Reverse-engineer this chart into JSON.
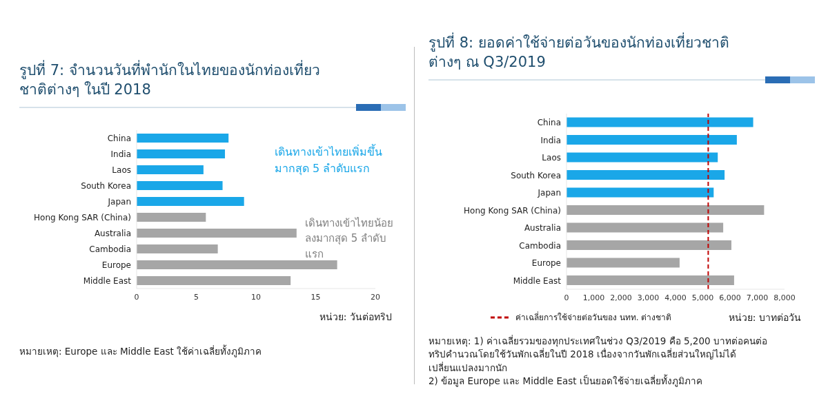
{
  "chart_data": [
    {
      "type": "bar",
      "orientation": "horizontal",
      "title": "รูปที่ 7: จำนวนวันที่พำนักในไทยของนักท่องเที่ยวชาติต่างๆ ในปี 2018",
      "xlabel": "หน่วย: วันต่อทริป",
      "categories": [
        "China",
        "India",
        "Laos",
        "South Korea",
        "Japan",
        "Hong Kong SAR (China)",
        "Australia",
        "Cambodia",
        "Europe",
        "Middle East"
      ],
      "values": [
        7.7,
        7.4,
        5.6,
        7.2,
        9.0,
        5.8,
        13.4,
        6.8,
        16.8,
        12.9
      ],
      "colors": [
        "#1aa7e8",
        "#1aa7e8",
        "#1aa7e8",
        "#1aa7e8",
        "#1aa7e8",
        "#a6a6a6",
        "#a6a6a6",
        "#a6a6a6",
        "#a6a6a6",
        "#a6a6a6"
      ],
      "xlim": [
        0,
        20
      ],
      "xticks": [
        0,
        5,
        10,
        15,
        20
      ],
      "grid": false,
      "annotations": [
        "เดินทางเข้าไทยเพิ่มขึ้นมากสุด 5 ลำดับแรก",
        "เดินทางเข้าไทยน้อยลงมากสุด 5 ลำดับแรก",
        "หมายเหตุ:  Europe และ Middle East ใช้ค่าเฉลี่ยทั้งภูมิภาค"
      ]
    },
    {
      "type": "bar",
      "orientation": "horizontal",
      "title": "รูปที่ 8: ยอดค่าใช้จ่ายต่อวันของนักท่องเที่ยวชาติต่างๆ ณ Q3/2019",
      "xlabel": "หน่วย: บาทต่อวัน",
      "categories": [
        "China",
        "India",
        "Laos",
        "South Korea",
        "Japan",
        "Hong Kong SAR (China)",
        "Australia",
        "Cambodia",
        "Europe",
        "Middle East"
      ],
      "values": [
        6850,
        6250,
        5550,
        5800,
        5400,
        7250,
        5750,
        6050,
        4150,
        6150
      ],
      "colors": [
        "#1aa7e8",
        "#1aa7e8",
        "#1aa7e8",
        "#1aa7e8",
        "#1aa7e8",
        "#a6a6a6",
        "#a6a6a6",
        "#a6a6a6",
        "#a6a6a6",
        "#a6a6a6"
      ],
      "xlim": [
        0,
        8000
      ],
      "xticks": [
        0,
        {
          "value": 1000,
          "label": "1,000"
        },
        {
          "value": 2000,
          "label": "2,000"
        },
        {
          "value": 3000,
          "label": "3,000"
        },
        {
          "value": 4000,
          "label": "4,000"
        },
        {
          "value": 5000,
          "label": "5,000"
        },
        {
          "value": 6000,
          "label": "6,000"
        },
        {
          "value": 7000,
          "label": "7,000"
        },
        {
          "value": 8000,
          "label": "8,000"
        }
      ],
      "grid": false,
      "ref_lines": [
        {
          "axis": "x",
          "value": 5200,
          "label": "ค่าเฉลี่ยการใช้จ่ายต่อวันของ นทท. ต่างชาติ",
          "color": "#c00000",
          "line_style": "dashed"
        }
      ],
      "annotations": [
        "หมายเหตุ: 1) ค่าเฉลี่ยรวมของทุกประเทศในช่วง Q3/2019 คือ 5,200  บาทต่อคนต่อทริปคำนวณโดยใช้วันพักเฉลี่ยในปี 2018 เนื่องจากวันพักเฉลี่ยส่วนใหญ่ไม่ได้เปลี่ยนแปลงมากนัก",
        "2) ข้อมูล Europe และ Middle East เป็นยอดใช้จ่ายเฉลี่ยทั้งภูมิภาค"
      ]
    }
  ]
}
